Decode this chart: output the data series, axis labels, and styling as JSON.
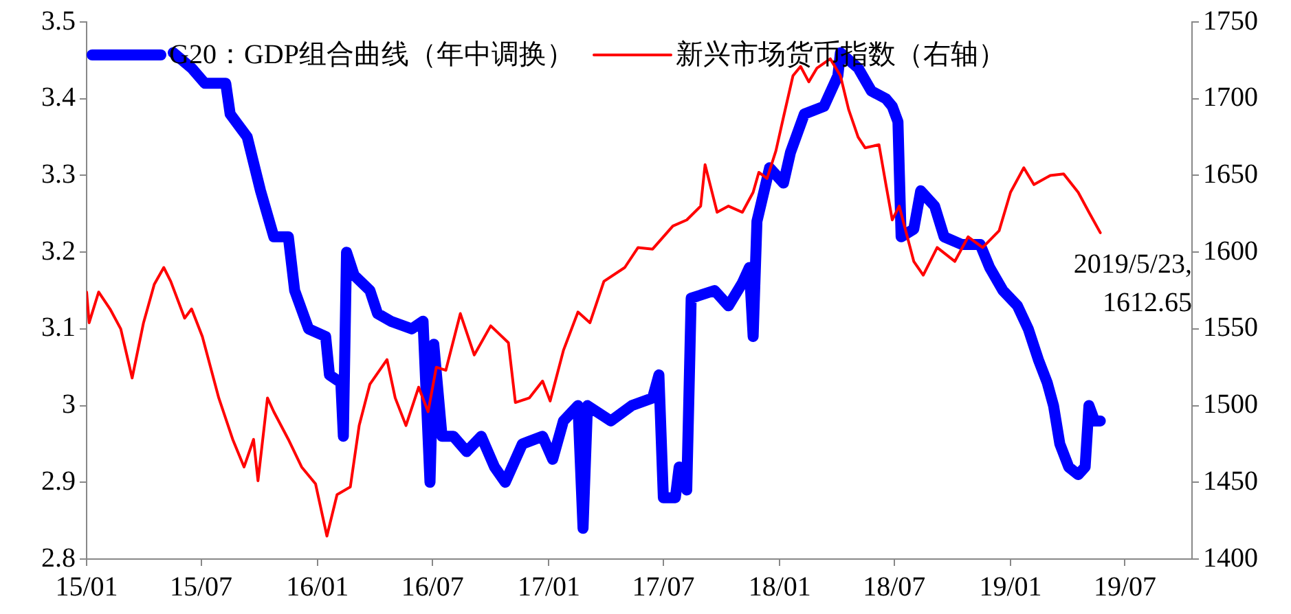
{
  "chart_data": {
    "type": "line",
    "legend": "top",
    "marker": "none",
    "line_style": "solid",
    "xlim": [
      "2015-01-01",
      "2019-10-15"
    ],
    "xticks": [
      {
        "value": "2015-01",
        "label": "15/01"
      },
      {
        "value": "2015-07",
        "label": "15/07"
      },
      {
        "value": "2016-01",
        "label": "16/01"
      },
      {
        "value": "2016-07",
        "label": "16/07"
      },
      {
        "value": "2017-01",
        "label": "17/01"
      },
      {
        "value": "2017-07",
        "label": "17/07"
      },
      {
        "value": "2018-01",
        "label": "18/01"
      },
      {
        "value": "2018-07",
        "label": "18/07"
      },
      {
        "value": "2019-01",
        "label": "19/01"
      },
      {
        "value": "2019-07",
        "label": "19/07"
      }
    ],
    "ylim": [
      2.8,
      3.5
    ],
    "yticks": [
      2.8,
      2.9,
      3,
      3.1,
      3.2,
      3.3,
      3.4,
      3.5
    ],
    "y2lim": [
      1400,
      1750
    ],
    "y2ticks": [
      1400,
      1450,
      1500,
      1550,
      1600,
      1650,
      1700,
      1750
    ],
    "annotations": [
      "2019/5/23,\n1612.65"
    ],
    "series": [
      {
        "name": "G20：GDP组合曲线（年中调换）",
        "color": "#0000ff",
        "x": [
          "2015-05-18",
          "2015-06-16",
          "2015-07-07",
          "2015-08-09",
          "2015-08-16",
          "2015-09-12",
          "2015-10-03",
          "2015-10-24",
          "2015-11-16",
          "2015-11-26",
          "2015-12-18",
          "2016-01-14",
          "2016-01-20",
          "2016-02-07",
          "2016-02-11",
          "2016-02-16",
          "2016-02-28",
          "2016-03-24",
          "2016-04-05",
          "2016-04-26",
          "2016-05-29",
          "2016-06-16",
          "2016-06-27",
          "2016-07-03",
          "2016-07-16",
          "2016-08-03",
          "2016-08-24",
          "2016-09-16",
          "2016-10-07",
          "2016-10-24",
          "2016-11-20",
          "2016-12-22",
          "2017-01-07",
          "2017-01-24",
          "2017-02-16",
          "2017-02-24",
          "2017-03-03",
          "2017-04-09",
          "2017-05-12",
          "2017-06-14",
          "2017-06-24",
          "2017-07-01",
          "2017-07-20",
          "2017-07-26",
          "2017-08-07",
          "2017-08-14",
          "2017-09-20",
          "2017-10-12",
          "2017-11-03",
          "2017-11-14",
          "2017-11-20",
          "2017-11-26",
          "2017-12-16",
          "2018-01-07",
          "2018-01-18",
          "2018-02-09",
          "2018-03-12",
          "2018-04-03",
          "2018-04-07",
          "2018-05-05",
          "2018-05-26",
          "2018-06-18",
          "2018-06-28",
          "2018-07-07",
          "2018-07-12",
          "2018-08-01",
          "2018-08-12",
          "2018-09-03",
          "2018-09-18",
          "2018-10-16",
          "2018-11-14",
          "2018-11-29",
          "2018-12-20",
          "2019-01-12",
          "2019-01-29",
          "2019-02-14",
          "2019-02-28",
          "2019-03-10",
          "2019-03-20",
          "2019-04-03",
          "2019-04-18",
          "2019-04-29",
          "2019-05-05",
          "2019-05-14",
          "2019-05-23"
        ],
        "values": [
          3.46,
          3.44,
          3.42,
          3.42,
          3.38,
          3.35,
          3.28,
          3.22,
          3.22,
          3.15,
          3.1,
          3.09,
          3.04,
          3.03,
          2.96,
          3.2,
          3.17,
          3.15,
          3.12,
          3.11,
          3.1,
          3.11,
          2.9,
          3.08,
          2.96,
          2.96,
          2.94,
          2.96,
          2.92,
          2.9,
          2.95,
          2.96,
          2.93,
          2.98,
          3,
          2.84,
          3,
          2.98,
          3,
          3.01,
          3.04,
          2.88,
          2.88,
          2.92,
          2.89,
          3.14,
          3.15,
          3.13,
          3.16,
          3.18,
          3.09,
          3.24,
          3.31,
          3.29,
          3.33,
          3.38,
          3.39,
          3.43,
          3.46,
          3.44,
          3.41,
          3.4,
          3.39,
          3.37,
          3.22,
          3.23,
          3.28,
          3.26,
          3.22,
          3.21,
          3.21,
          3.18,
          3.15,
          3.13,
          3.1,
          3.06,
          3.03,
          3,
          2.95,
          2.92,
          2.91,
          2.92,
          3,
          2.98,
          2.98
        ]
      },
      {
        "name": "新兴市场货币指数（右轴）",
        "color": "#ff0000",
        "axis": "y2",
        "x": [
          "2015-01-01",
          "2015-01-05",
          "2015-01-20",
          "2015-02-07",
          "2015-02-24",
          "2015-03-14",
          "2015-04-01",
          "2015-04-18",
          "2015-05-03",
          "2015-05-14",
          "2015-06-05",
          "2015-06-16",
          "2015-07-03",
          "2015-07-29",
          "2015-08-20",
          "2015-09-07",
          "2015-09-22",
          "2015-09-29",
          "2015-10-14",
          "2015-10-24",
          "2015-11-16",
          "2015-12-07",
          "2015-12-29",
          "2016-01-16",
          "2016-02-01",
          "2016-02-22",
          "2016-03-07",
          "2016-03-24",
          "2016-04-20",
          "2016-05-03",
          "2016-05-20",
          "2016-06-09",
          "2016-06-24",
          "2016-07-07",
          "2016-07-22",
          "2016-08-14",
          "2016-09-05",
          "2016-10-01",
          "2016-10-29",
          "2016-11-09",
          "2016-12-01",
          "2016-12-22",
          "2017-01-03",
          "2017-01-24",
          "2017-02-16",
          "2017-03-07",
          "2017-03-29",
          "2017-05-01",
          "2017-05-22",
          "2017-06-14",
          "2017-07-16",
          "2017-08-07",
          "2017-08-29",
          "2017-09-05",
          "2017-09-24",
          "2017-10-12",
          "2017-11-03",
          "2017-11-20",
          "2017-11-29",
          "2017-12-12",
          "2017-12-26",
          "2018-01-07",
          "2018-01-22",
          "2018-02-03",
          "2018-02-16",
          "2018-03-01",
          "2018-03-22",
          "2018-04-07",
          "2018-04-20",
          "2018-05-05",
          "2018-05-16",
          "2018-06-07",
          "2018-06-18",
          "2018-06-28",
          "2018-07-09",
          "2018-08-01",
          "2018-08-16",
          "2018-09-07",
          "2018-10-05",
          "2018-10-26",
          "2018-11-18",
          "2018-12-14",
          "2019-01-01",
          "2019-01-22",
          "2019-02-07",
          "2019-03-05",
          "2019-03-26",
          "2019-04-18",
          "2019-05-05",
          "2019-05-23"
        ],
        "values": [
          1574,
          1554,
          1574,
          1563,
          1550,
          1518,
          1554,
          1579,
          1590,
          1581,
          1557,
          1563,
          1545,
          1505,
          1478,
          1460,
          1478,
          1451,
          1505,
          1496,
          1478,
          1460,
          1449,
          1415,
          1442,
          1447,
          1487,
          1514,
          1530,
          1505,
          1487,
          1512,
          1496,
          1525,
          1523,
          1560,
          1533,
          1552,
          1541,
          1502,
          1505,
          1516,
          1503,
          1536,
          1561,
          1554,
          1581,
          1590,
          1603,
          1602,
          1617,
          1621,
          1630,
          1657,
          1626,
          1630,
          1626,
          1639,
          1652,
          1648,
          1666,
          1688,
          1715,
          1721,
          1711,
          1720,
          1726,
          1715,
          1693,
          1675,
          1668,
          1670,
          1644,
          1621,
          1630,
          1594,
          1585,
          1603,
          1594,
          1610,
          1603,
          1614,
          1639,
          1655,
          1644,
          1650,
          1651,
          1639,
          1626,
          1612.65
        ]
      }
    ]
  }
}
